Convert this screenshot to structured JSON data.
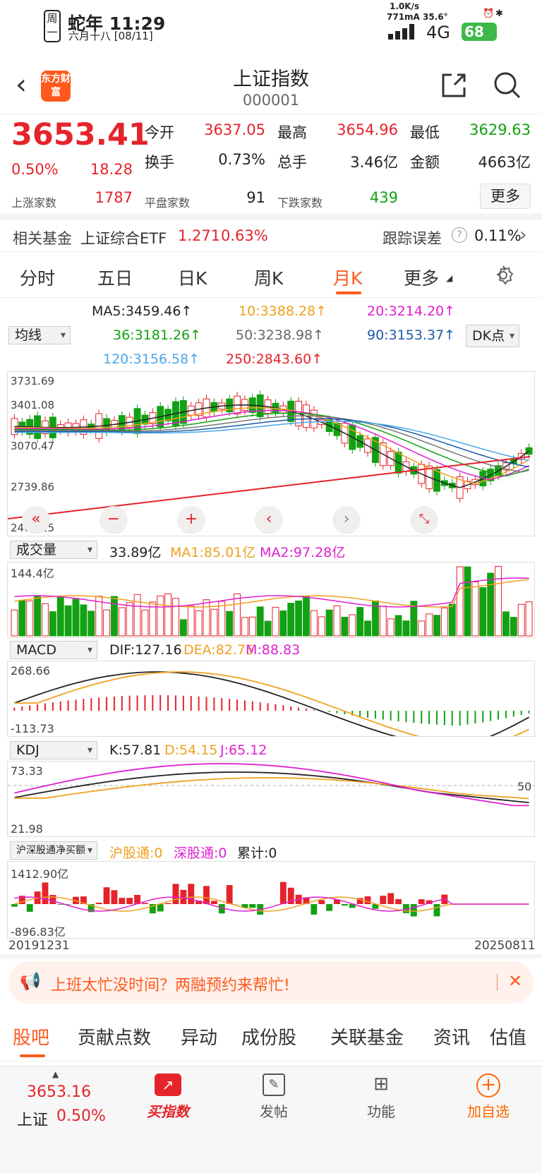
{
  "status": {
    "weekday_top": "周",
    "weekday_bottom": "一",
    "lunar_year_time": "蛇年 11:29",
    "lunar_date": "六月十八 [08/11]",
    "net_speed": "1.0K/s",
    "current_temp": "771mA 35.6°",
    "network": "4G",
    "battery": "68"
  },
  "header": {
    "logo": "东方财富",
    "title": "上证指数",
    "code": "000001"
  },
  "quote": {
    "price": "3653.41",
    "change_pct": "0.50%",
    "change": "18.28",
    "open_label": "今开",
    "open": "3637.05",
    "high_label": "最高",
    "high": "3654.96",
    "low_label": "最低",
    "low": "3629.63",
    "turnover_label": "换手",
    "turnover": "0.73%",
    "volume_label": "总手",
    "volume": "3.46亿",
    "amount_label": "金额",
    "amount": "4663亿",
    "up_label": "上涨家数",
    "up": "1787",
    "flat_label": "平盘家数",
    "flat": "91",
    "down_label": "下跌家数",
    "down": "439",
    "more": "更多"
  },
  "fund": {
    "label": "相关基金",
    "name": "上证综合ETF",
    "price": "1.271",
    "pct": "0.63%",
    "track_label": "跟踪误差",
    "track_value": "0.11%"
  },
  "tabs": [
    "分时",
    "五日",
    "日K",
    "周K",
    "月K",
    "更多"
  ],
  "ma": {
    "select": "均线",
    "dk": "DK点",
    "values": [
      "MA5:3459.46↑",
      "10:3388.28↑",
      "20:3214.20↑",
      "36:3181.26↑",
      "50:3238.98↑",
      "90:3153.37↑",
      "120:3156.58↑",
      "250:2843.60↑"
    ]
  },
  "kline": {
    "y_labels": [
      "3731.69",
      "3401.08",
      "3070.47",
      "2739.86",
      "2409.25"
    ]
  },
  "volume": {
    "select": "成交量",
    "value": "33.89亿",
    "ma1": "MA1:85.01亿",
    "ma2": "MA2:97.28亿",
    "top": "144.4亿"
  },
  "macd": {
    "select": "MACD",
    "dif": "DIF:127.16",
    "dea": "DEA:82.75",
    "m": "M:88.83",
    "top": "268.66",
    "bottom": "-113.73"
  },
  "kdj": {
    "select": "KDJ",
    "k": "K:57.81",
    "d": "D:54.15",
    "j": "J:65.12",
    "top": "73.33",
    "bottom": "21.98",
    "mid": "50"
  },
  "hsgt": {
    "select": "沪深股通净买额",
    "sh": "沪股通:0",
    "sz": "深股通:0",
    "total": "累计:0",
    "top": "1412.90亿",
    "bottom": "-896.83亿"
  },
  "dates": {
    "start": "20191231",
    "end": "20250811"
  },
  "ad": {
    "text": "上班太忙没时间？两融预约来帮忙!"
  },
  "subtabs": [
    "股吧",
    "贡献点数",
    "异动",
    "成份股",
    "关联基金",
    "资讯",
    "估值"
  ],
  "bottom": {
    "price": "3653.16",
    "name": "上证",
    "pct": "0.50%",
    "buy": "买指数",
    "post": "发帖",
    "func": "功能",
    "add": "加自选"
  },
  "colors": {
    "red": "#e5232b",
    "green": "#12a112",
    "orange": "#f0a020",
    "magenta": "#e020d0",
    "accent": "#ff6600"
  }
}
